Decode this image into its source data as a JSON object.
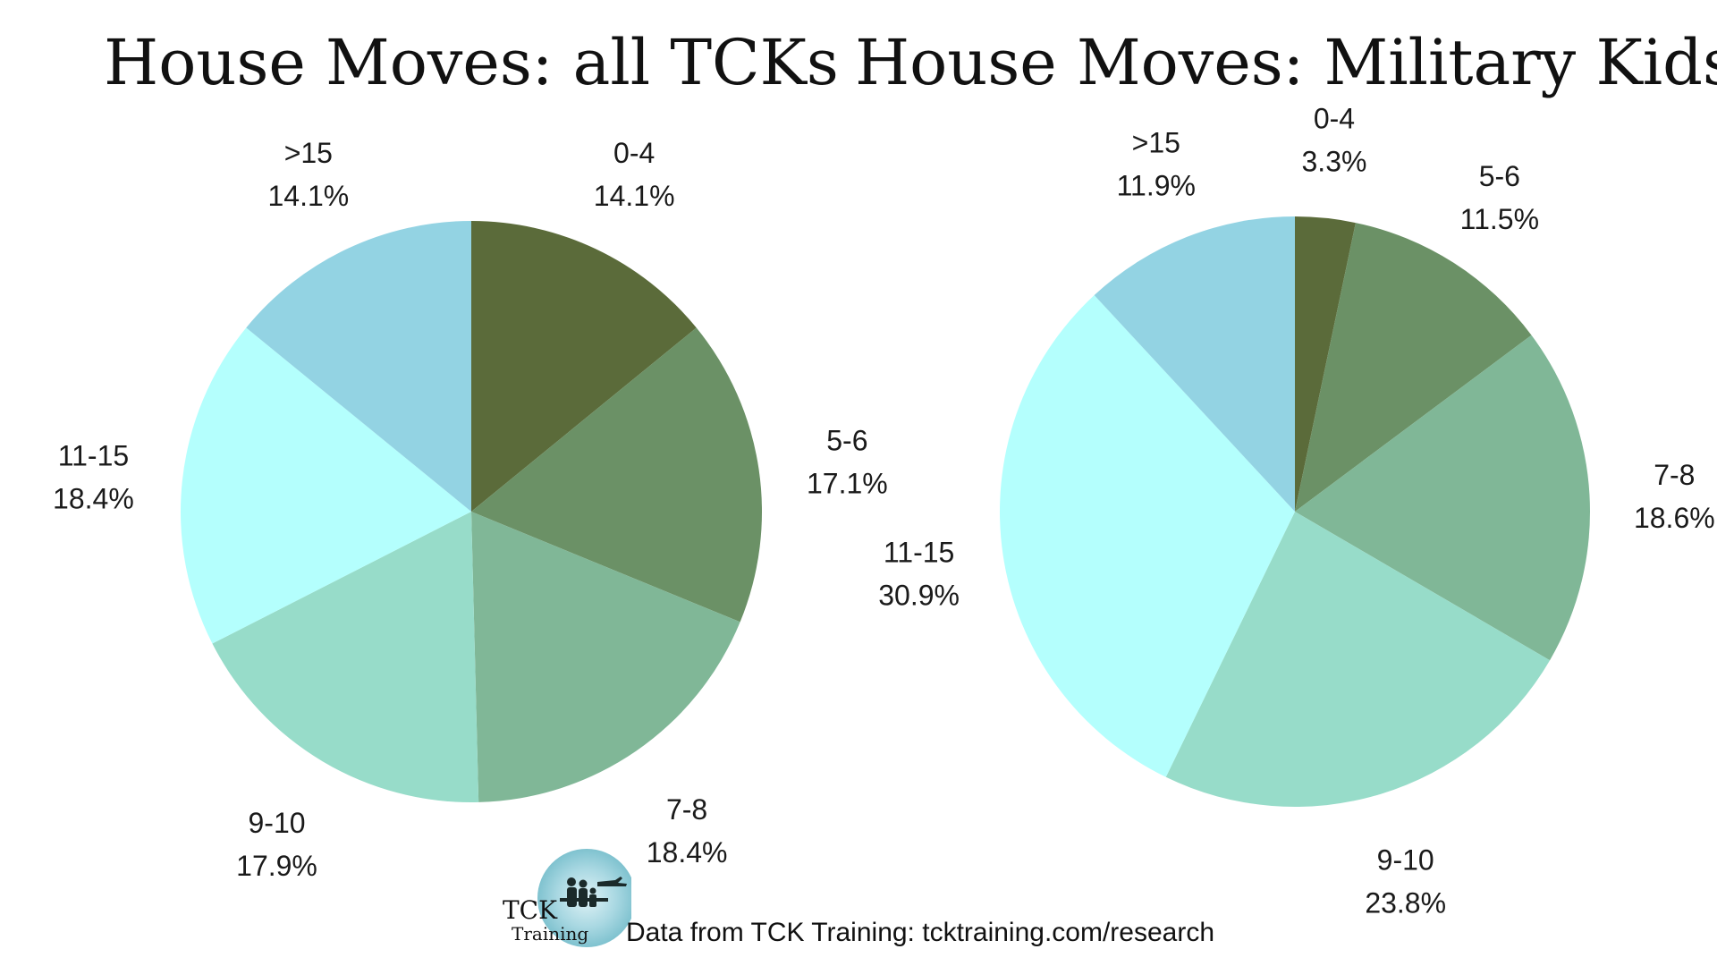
{
  "colors": {
    "0-4": "#5b6b3a",
    "5-6": "#6b9166",
    "7-8": "#80b797",
    "9-10": "#97dcc9",
    "11-15": "#b4fffd",
    ">15": "#93d3e3"
  },
  "chart_data": [
    {
      "type": "pie",
      "title": "House Moves: all TCKs",
      "categories": [
        "0-4",
        "5-6",
        "7-8",
        "9-10",
        "11-15",
        ">15"
      ],
      "values": [
        14.1,
        17.1,
        18.4,
        17.9,
        18.4,
        14.1
      ],
      "labels": [
        "14.1%",
        "17.1%",
        "18.4%",
        "17.9%",
        "18.4%",
        "14.1%"
      ]
    },
    {
      "type": "pie",
      "title": "House Moves: Military Kids",
      "categories": [
        "0-4",
        "5-6",
        "7-8",
        "9-10",
        "11-15",
        ">15"
      ],
      "values": [
        3.3,
        11.5,
        18.6,
        23.8,
        30.9,
        11.9
      ],
      "labels": [
        "3.3%",
        "11.5%",
        "18.6%",
        "23.8%",
        "30.9%",
        "11.9%"
      ]
    }
  ],
  "footer": {
    "credit": "Data from TCK Training: tcktraining.com/research",
    "logo_line1": "TCK",
    "logo_line2": "Training"
  }
}
